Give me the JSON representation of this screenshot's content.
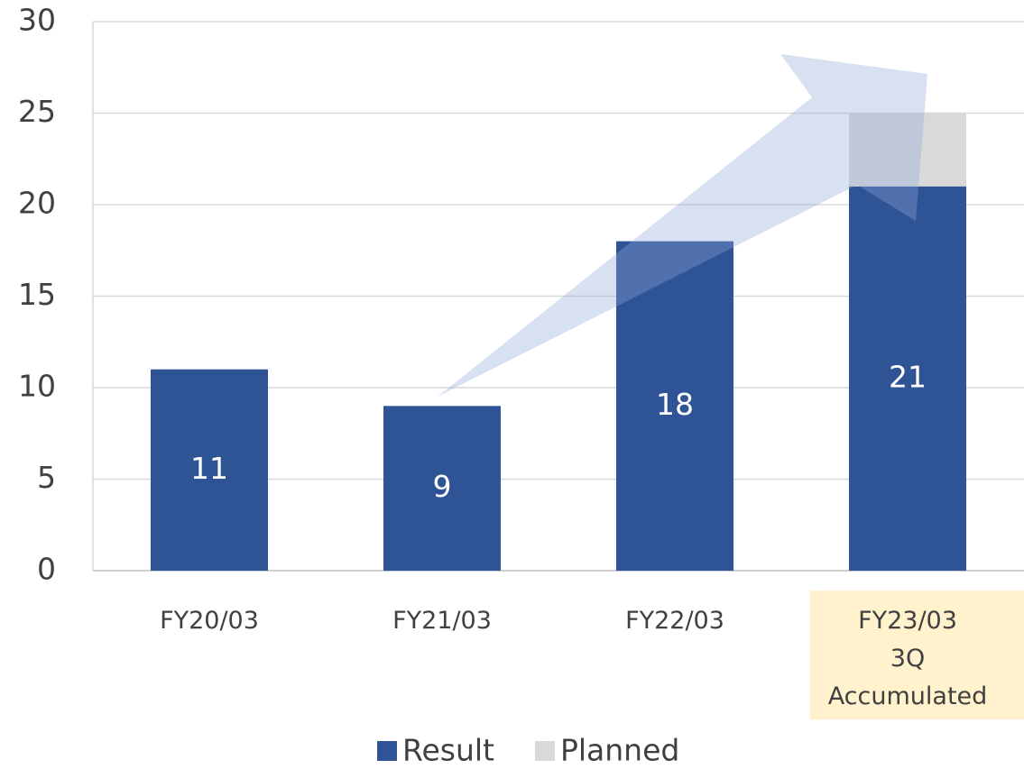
{
  "chart_data": {
    "type": "stacked_bar",
    "categories": [
      "FY20/03",
      "FY21/03",
      "FY22/03",
      "FY23/03\n3Q\nAccumulated"
    ],
    "series": [
      {
        "name": "Result",
        "color": "#2f5496",
        "values": [
          11,
          9,
          18,
          21
        ]
      },
      {
        "name": "Planned",
        "color": "#d9d9d9",
        "values": [
          null,
          null,
          null,
          4
        ]
      }
    ],
    "ylim": [
      0,
      30
    ],
    "yticks": [
      0,
      5,
      10,
      15,
      20,
      25,
      30
    ],
    "grid": true,
    "legend": "bottom"
  }
}
